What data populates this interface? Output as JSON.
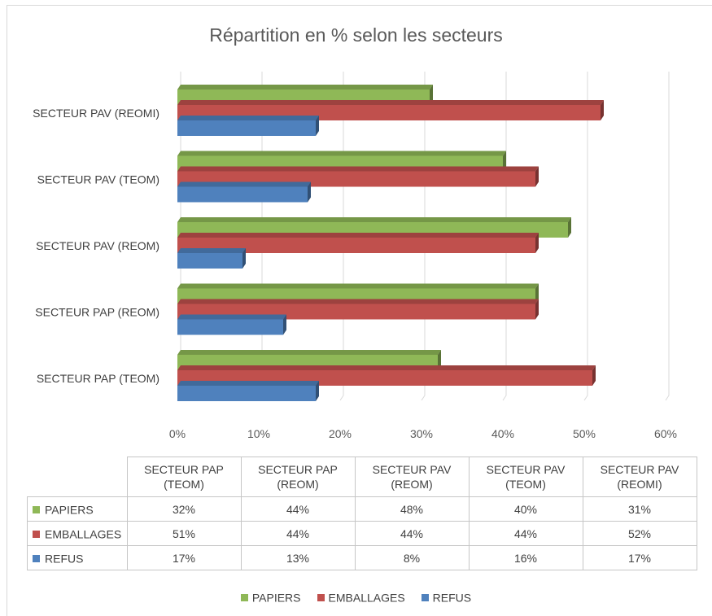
{
  "chart_data": {
    "type": "bar",
    "orientation": "horizontal",
    "title": "Répartition en % selon les secteurs",
    "xlim": [
      0,
      60
    ],
    "x_ticks": [
      "0%",
      "10%",
      "20%",
      "30%",
      "40%",
      "50%",
      "60%"
    ],
    "grid": true,
    "legend_position": "bottom",
    "categories": [
      "SECTEUR PAP (TEOM)",
      "SECTEUR PAP (REOM)",
      "SECTEUR PAV (REOM)",
      "SECTEUR PAV (TEOM)",
      "SECTEUR PAV (REOMI)"
    ],
    "table_headers": [
      [
        "SECTEUR PAP",
        "(TEOM)"
      ],
      [
        "SECTEUR PAP",
        "(REOM)"
      ],
      [
        "SECTEUR PAV",
        "(REOM)"
      ],
      [
        "SECTEUR PAV",
        "(TEOM)"
      ],
      [
        "SECTEUR PAV",
        "(REOMI)"
      ]
    ],
    "series": [
      {
        "name": "PAPIERS",
        "color": "#8fb857",
        "values": [
          32,
          44,
          48,
          40,
          31
        ],
        "labels": [
          "32%",
          "44%",
          "48%",
          "40%",
          "31%"
        ]
      },
      {
        "name": "EMBALLAGES",
        "color": "#c0504d",
        "values": [
          51,
          44,
          44,
          44,
          52
        ],
        "labels": [
          "51%",
          "44%",
          "44%",
          "44%",
          "52%"
        ]
      },
      {
        "name": "REFUS",
        "color": "#4f81bd",
        "values": [
          17,
          13,
          8,
          16,
          17
        ],
        "labels": [
          "17%",
          "13%",
          "8%",
          "16%",
          "17%"
        ]
      }
    ]
  }
}
